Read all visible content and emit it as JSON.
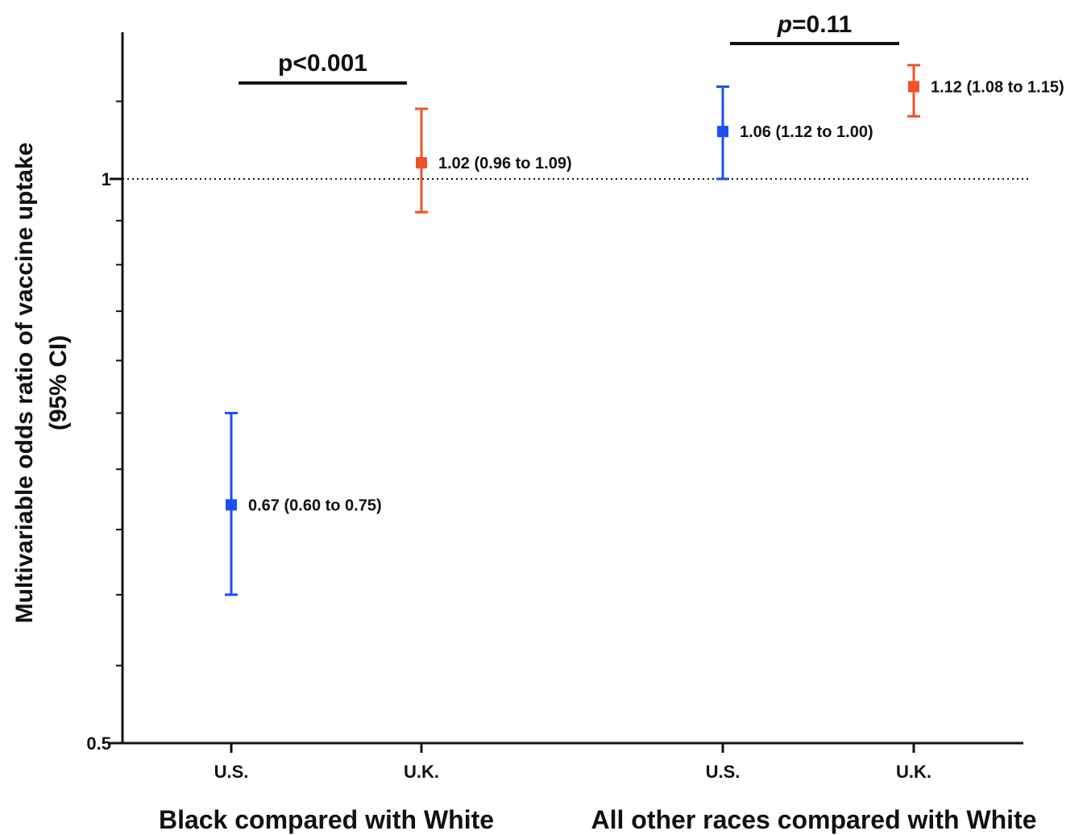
{
  "chart_data": {
    "type": "scatter",
    "ylabel": "Multivariable odds ratio of vaccine uptake",
    "ylabel_line2": "(95% CI)",
    "y_scale": "log",
    "ylim": [
      0.5,
      1.2
    ],
    "y_ticks": [
      0.5,
      1
    ],
    "y_tick_labels": [
      "0.5",
      "1"
    ],
    "reference_line": 1,
    "groups": [
      {
        "label": "Black compared with White",
        "pvalue": "p<0.001",
        "points": [
          {
            "category": "U.S.",
            "estimate": 0.67,
            "lower": 0.6,
            "upper": 0.75,
            "label": "0.67 (0.60 to 0.75)",
            "color": "#1a4ff2"
          },
          {
            "category": "U.K.",
            "estimate": 1.02,
            "lower": 0.96,
            "upper": 1.09,
            "label": "1.02 (0.96 to 1.09)",
            "color": "#f0532a"
          }
        ]
      },
      {
        "label": "All other races compared with White",
        "pvalue_italic": "p",
        "pvalue_rest": "=0.11",
        "points": [
          {
            "category": "U.S.",
            "estimate": 1.06,
            "lower": 1.0,
            "upper": 1.12,
            "label": "1.06 (1.12 to 1.00)",
            "color": "#1a4ff2"
          },
          {
            "category": "U.K.",
            "estimate": 1.12,
            "lower": 1.08,
            "upper": 1.15,
            "label": "1.12 (1.08 to 1.15)",
            "color": "#f0532a"
          }
        ]
      }
    ]
  }
}
